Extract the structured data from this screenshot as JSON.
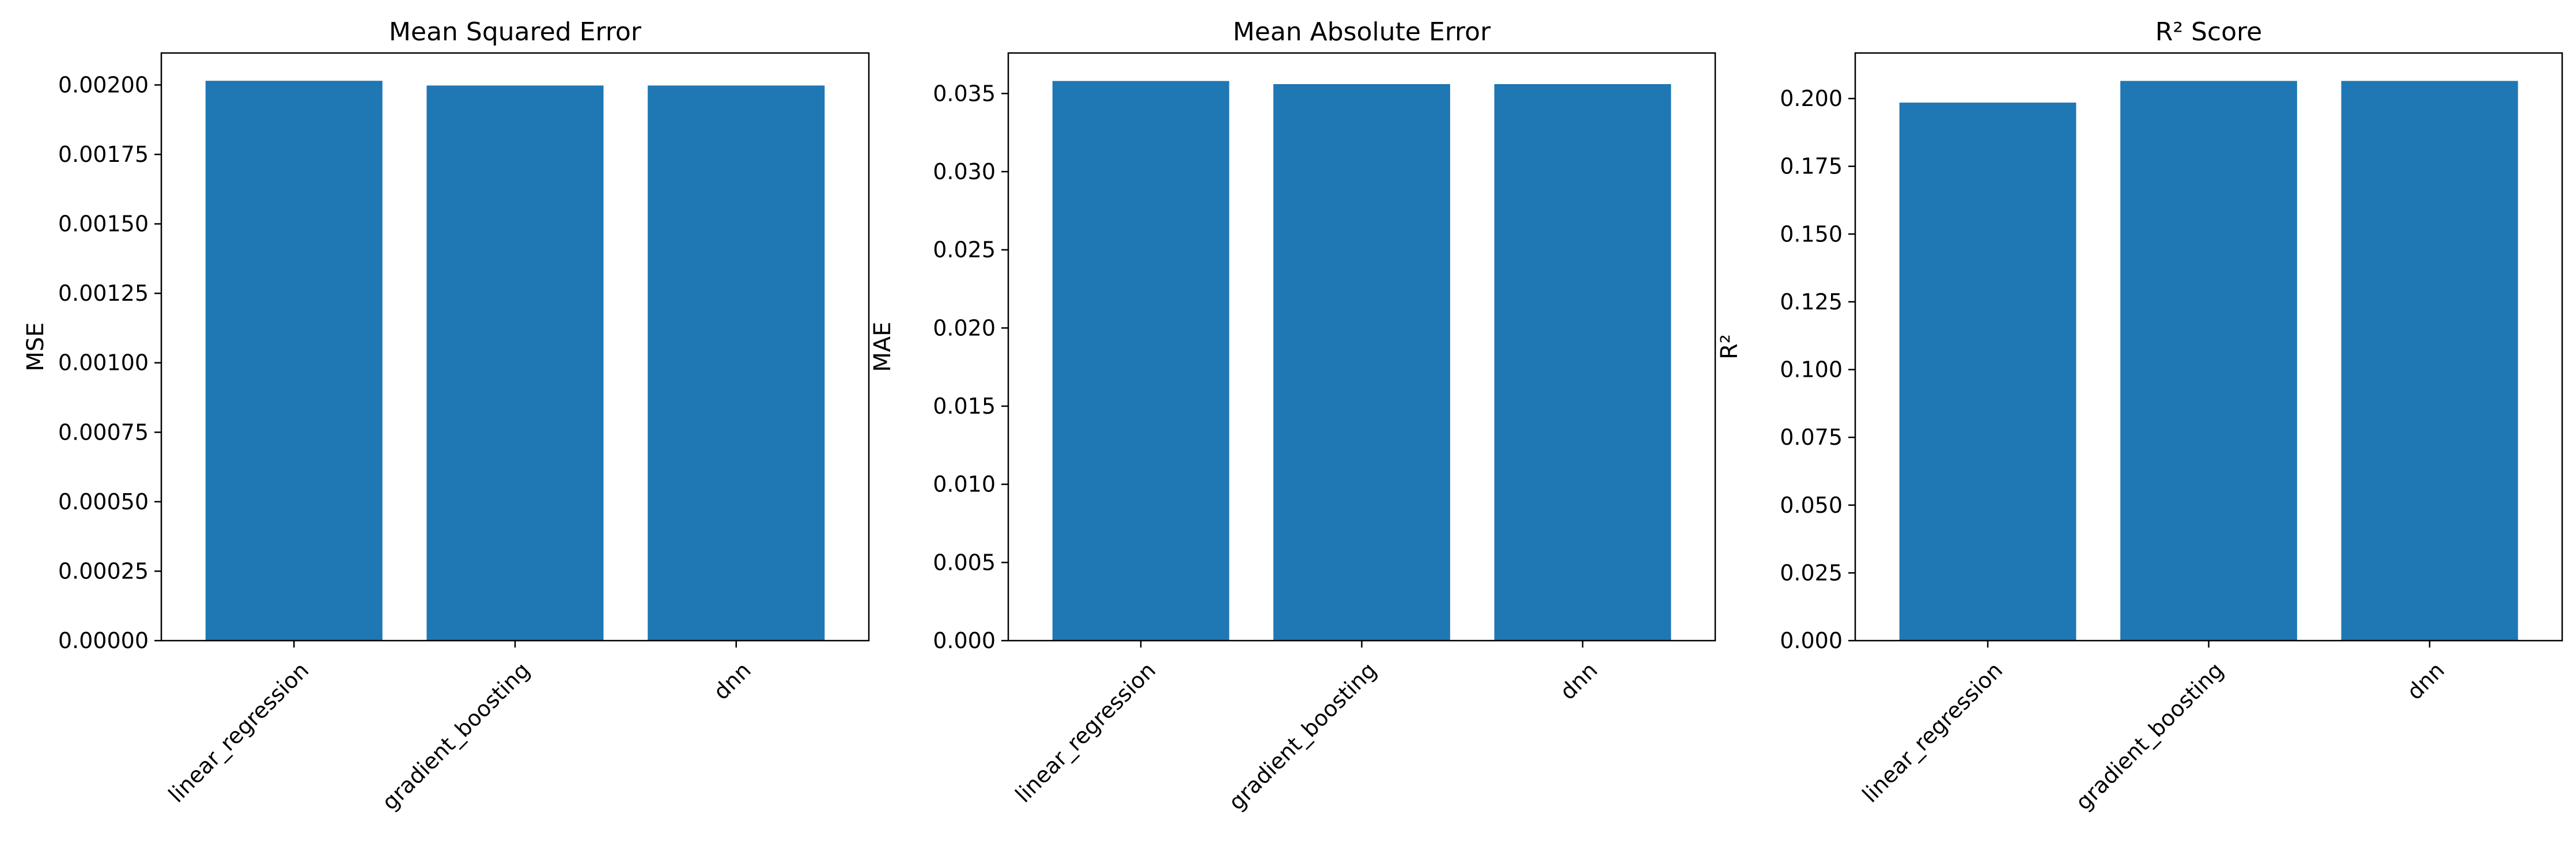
{
  "colors": {
    "bar": "#1f77b4",
    "axis": "#000000",
    "background": "#ffffff"
  },
  "chart_data": [
    {
      "type": "bar",
      "title": "Mean Squared Error",
      "xlabel": "",
      "ylabel": "MSE",
      "categories": [
        "linear_regression",
        "gradient_boosting",
        "dnn"
      ],
      "values": [
        0.002015,
        0.001998,
        0.001998
      ],
      "ylim": [
        0,
        0.002115
      ],
      "yticks": [
        0,
        0.00025,
        0.0005,
        0.00075,
        0.001,
        0.00125,
        0.0015,
        0.00175,
        0.002
      ],
      "ytick_labels": [
        "0.00000",
        "0.00025",
        "0.00050",
        "0.00075",
        "0.00100",
        "0.00125",
        "0.00150",
        "0.00175",
        "0.00200"
      ],
      "grid": false,
      "legend": "none"
    },
    {
      "type": "bar",
      "title": "Mean Absolute Error",
      "xlabel": "",
      "ylabel": "MAE",
      "categories": [
        "linear_regression",
        "gradient_boosting",
        "dnn"
      ],
      "values": [
        0.0358,
        0.0356,
        0.0356
      ],
      "ylim": [
        0,
        0.03759
      ],
      "yticks": [
        0,
        0.005,
        0.01,
        0.015,
        0.02,
        0.025,
        0.03,
        0.035
      ],
      "ytick_labels": [
        "0.000",
        "0.005",
        "0.010",
        "0.015",
        "0.020",
        "0.025",
        "0.030",
        "0.035"
      ],
      "grid": false,
      "legend": "none"
    },
    {
      "type": "bar",
      "title": "R² Score",
      "xlabel": "",
      "ylabel": "R²",
      "categories": [
        "linear_regression",
        "gradient_boosting",
        "dnn"
      ],
      "values": [
        0.1985,
        0.2065,
        0.2065
      ],
      "ylim": [
        0,
        0.2168
      ],
      "yticks": [
        0,
        0.025,
        0.05,
        0.075,
        0.1,
        0.125,
        0.15,
        0.175,
        0.2
      ],
      "ytick_labels": [
        "0.000",
        "0.025",
        "0.050",
        "0.075",
        "0.100",
        "0.125",
        "0.150",
        "0.175",
        "0.200"
      ],
      "grid": false,
      "legend": "none"
    }
  ]
}
